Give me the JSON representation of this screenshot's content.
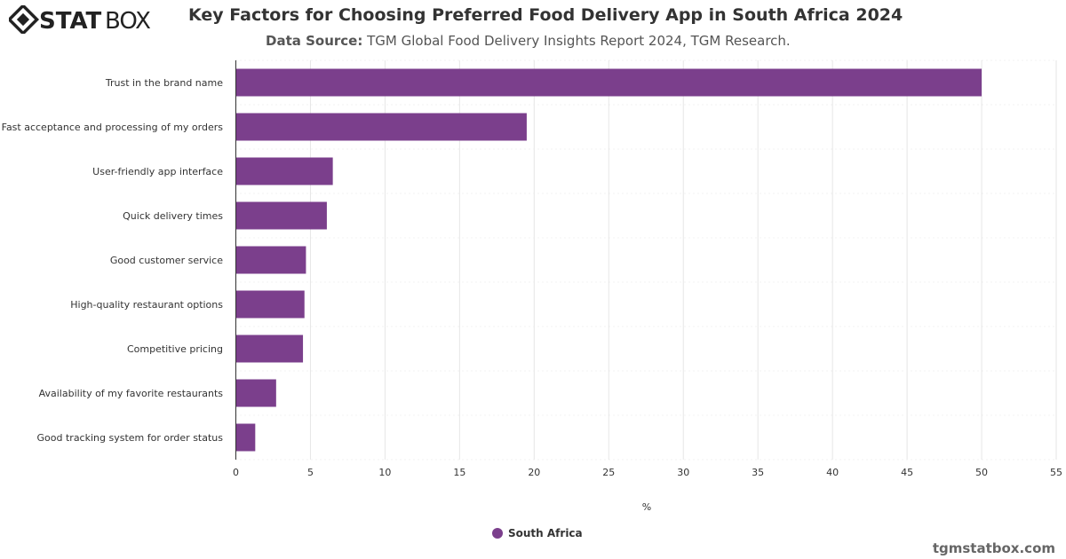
{
  "header": {
    "logo_text": "STATBOX",
    "title": "Key Factors for Choosing Preferred Food Delivery App in South Africa 2024",
    "source_label": "Data Source:",
    "source_text": "TGM Global Food Delivery Insights Report 2024, TGM Research."
  },
  "footer": {
    "site": "tgmstatbox.com"
  },
  "chart_data": {
    "type": "bar",
    "orientation": "horizontal",
    "categories": [
      "Trust in the brand name",
      "Fast acceptance and processing of my orders",
      "User-friendly app interface",
      "Quick delivery times",
      "Good customer service",
      "High-quality restaurant options",
      "Competitive pricing",
      "Availability of my favorite restaurants",
      "Good tracking system for order status"
    ],
    "series": [
      {
        "name": "South Africa",
        "color": "#7b3f8c",
        "values": [
          50,
          19.5,
          6.5,
          6.1,
          4.7,
          4.6,
          4.5,
          2.7,
          1.3
        ]
      }
    ],
    "xlabel": "%",
    "xlim": [
      0,
      55
    ],
    "xticks": [
      "0",
      "5",
      "10",
      "15",
      "20",
      "25",
      "30",
      "35",
      "40",
      "45",
      "50",
      "55"
    ],
    "grid": true,
    "legend": "bottom-center"
  }
}
